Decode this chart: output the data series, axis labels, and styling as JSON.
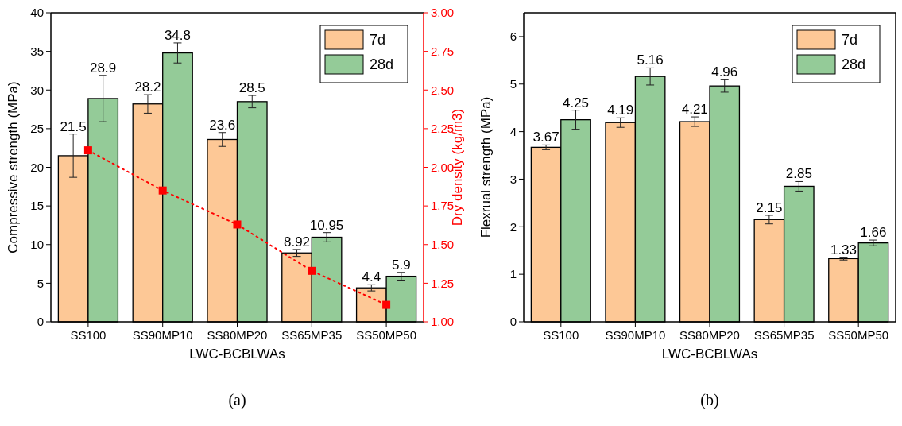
{
  "chart_data": [
    {
      "type": "bar",
      "categories": [
        "SS100",
        "SS90MP10",
        "SS80MP20",
        "SS65MP35",
        "SS50MP50"
      ],
      "xlabel": "LWC-BCBLWAs",
      "ylabel": "Compressive strength (MPa)",
      "y2label": "Dry density (kg/m3)",
      "ylim": [
        0,
        40
      ],
      "yticks": [
        0,
        5,
        10,
        15,
        20,
        25,
        30,
        35,
        40
      ],
      "y2lim": [
        1,
        3
      ],
      "y2ticks": [
        {
          "value": 1,
          "label": "1.00"
        },
        {
          "value": 1.25,
          "label": "1.25"
        },
        {
          "value": 1.5,
          "label": "1.50"
        },
        {
          "value": 1.75,
          "label": "1.75"
        },
        {
          "value": 2,
          "label": "2.00"
        },
        {
          "value": 2.25,
          "label": "2.25"
        },
        {
          "value": 2.5,
          "label": "2.50"
        },
        {
          "value": 2.75,
          "label": "2.75"
        },
        {
          "value": 3,
          "label": "3.00"
        }
      ],
      "legend": "top right",
      "annotations": [
        "(a)"
      ],
      "series": [
        {
          "name": "7d",
          "color": "#fdc896",
          "values": [
            21.5,
            28.2,
            23.6,
            8.92,
            4.4
          ],
          "value_labels": [
            "21.5",
            "28.2",
            "23.6",
            "8.92",
            "4.4"
          ],
          "errors": [
            2.8,
            1.2,
            0.9,
            0.45,
            0.4
          ]
        },
        {
          "name": "28d",
          "color": "#94cb98",
          "values": [
            28.9,
            34.8,
            28.5,
            10.95,
            5.9
          ],
          "value_labels": [
            "28.9",
            "34.8",
            "28.5",
            "10.95",
            "5.9"
          ],
          "errors": [
            3.0,
            1.3,
            0.8,
            0.6,
            0.5
          ]
        },
        {
          "type": "line",
          "axis": "y2",
          "color": "#ff0000",
          "marker": "square",
          "line_style": "dotted",
          "values": [
            2.11,
            1.85,
            1.63,
            1.33,
            1.11
          ]
        }
      ]
    },
    {
      "type": "bar",
      "categories": [
        "SS100",
        "SS90MP10",
        "SS80MP20",
        "SS65MP35",
        "SS50MP50"
      ],
      "xlabel": "LWC-BCBLWAs",
      "ylabel": "Flexrual strength (MPa)",
      "ylim": [
        0,
        6.5
      ],
      "yticks": [
        0,
        1,
        2,
        3,
        4,
        5,
        6
      ],
      "legend": "top right",
      "data_labels": true,
      "annotations": [
        "(b)"
      ],
      "series": [
        {
          "name": "7d",
          "color": "#fdc896",
          "values": [
            3.67,
            4.19,
            4.21,
            2.15,
            1.33
          ],
          "errors": [
            0.05,
            0.1,
            0.1,
            0.09,
            0.03
          ]
        },
        {
          "name": "28d",
          "color": "#94cb98",
          "values": [
            4.25,
            5.16,
            4.96,
            2.85,
            1.66
          ],
          "errors": [
            0.2,
            0.18,
            0.13,
            0.1,
            0.06
          ]
        }
      ]
    }
  ]
}
